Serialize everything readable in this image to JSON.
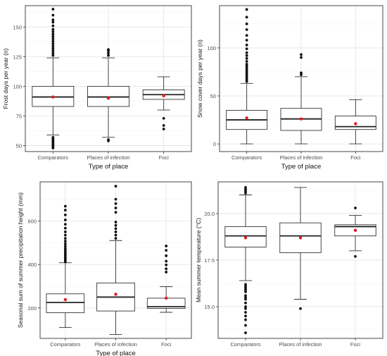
{
  "chart_data": [
    {
      "type": "box",
      "xlabel": "Type of place",
      "ylabel": "Frost days per year (n)",
      "categories": [
        "Comparators",
        "Places of infection",
        "Foci"
      ],
      "yticks": [
        50,
        75,
        100,
        125,
        150
      ],
      "ylim": [
        45,
        168
      ],
      "grid": true,
      "boxes": [
        {
          "whisker_low": 59,
          "q1": 83,
          "median": 91,
          "q3": 100,
          "whisker_high": 124,
          "mean": 91,
          "outliers_low": [
            48,
            49,
            50,
            51,
            52,
            53,
            54,
            55,
            56,
            57
          ],
          "outliers_high": [
            126,
            128,
            130,
            132,
            134,
            136,
            138,
            140,
            142,
            144,
            146,
            148,
            151,
            154,
            156,
            160,
            165
          ]
        },
        {
          "whisker_low": 57,
          "q1": 83,
          "median": 91,
          "q3": 100,
          "whisker_high": 124,
          "mean": 90,
          "outliers_low": [
            54,
            55
          ],
          "outliers_high": [
            126,
            128,
            130,
            131
          ]
        },
        {
          "whisker_low": 80,
          "q1": 89,
          "median": 93,
          "q3": 97,
          "whisker_high": 108,
          "mean": 92,
          "outliers_low": [
            73,
            67,
            64
          ],
          "outliers_high": []
        }
      ]
    },
    {
      "type": "box",
      "xlabel": "Type of place",
      "ylabel": "Snow cover days per year (n)",
      "categories": [
        "Comparators",
        "Places of infection",
        "Foci"
      ],
      "yticks": [
        0,
        50,
        100
      ],
      "ylim": [
        -8,
        144
      ],
      "grid": true,
      "boxes": [
        {
          "whisker_low": 0,
          "q1": 15,
          "median": 25,
          "q3": 35,
          "whisker_high": 63,
          "mean": 27,
          "outliers_low": [],
          "outliers_high": [
            65,
            67,
            69,
            71,
            73,
            75,
            77,
            79,
            81,
            83,
            86,
            89,
            92,
            95,
            99,
            103,
            108,
            113,
            119,
            125,
            132,
            140
          ]
        },
        {
          "whisker_low": 0,
          "q1": 14,
          "median": 26,
          "q3": 37,
          "whisker_high": 70,
          "mean": 26,
          "outliers_low": [],
          "outliers_high": [
            72,
            74,
            90,
            93
          ]
        },
        {
          "whisker_low": 0,
          "q1": 15,
          "median": 18,
          "q3": 29,
          "whisker_high": 46,
          "mean": 21,
          "outliers_low": [],
          "outliers_high": []
        }
      ]
    },
    {
      "type": "box",
      "xlabel": "Type of place",
      "ylabel": "Seasonal sum of summer precipitation height (mm)",
      "categories": [
        "Comparators",
        "Places of infection",
        "Foci"
      ],
      "yticks": [
        200,
        400,
        600
      ],
      "ylim": [
        60,
        780
      ],
      "grid": true,
      "boxes": [
        {
          "whisker_low": 110,
          "q1": 178,
          "median": 225,
          "q3": 265,
          "whisker_high": 408,
          "mean": 238,
          "outliers_low": [],
          "outliers_high": [
            412,
            418,
            425,
            432,
            440,
            448,
            456,
            465,
            474,
            484,
            495,
            507,
            520,
            535,
            550,
            567,
            585,
            605,
            628,
            650,
            668
          ]
        },
        {
          "whisker_low": 78,
          "q1": 186,
          "median": 250,
          "q3": 315,
          "whisker_high": 510,
          "mean": 263,
          "outliers_low": [],
          "outliers_high": [
            520,
            535,
            550,
            565,
            580,
            595,
            640,
            660,
            680,
            700,
            760
          ]
        },
        {
          "whisker_low": 180,
          "q1": 198,
          "median": 206,
          "q3": 245,
          "whisker_high": 298,
          "mean": 245,
          "outliers_low": [],
          "outliers_high": [
            365,
            380,
            398,
            415,
            440,
            465,
            485
          ]
        }
      ]
    },
    {
      "type": "box",
      "xlabel": "",
      "ylabel": "Mean summer temperature (°C)",
      "categories": [
        "Comparators",
        "Places of infection",
        "Foci"
      ],
      "yticks": [
        15.0,
        17.5,
        20.0
      ],
      "ylim": [
        13.3,
        21.7
      ],
      "grid": true,
      "boxes": [
        {
          "whisker_low": 16.4,
          "q1": 18.2,
          "median": 18.8,
          "q3": 19.3,
          "whisker_high": 21.0,
          "mean": 18.7,
          "outliers_low": [
            13.6,
            14.0,
            14.3,
            14.5,
            14.7,
            14.9,
            15.0,
            15.2,
            15.4,
            15.5,
            15.6,
            15.8,
            15.9,
            16.0,
            16.1,
            16.2
          ],
          "outliers_high": [
            21.1,
            21.2,
            21.3,
            21.4
          ]
        },
        {
          "whisker_low": 15.4,
          "q1": 17.9,
          "median": 18.8,
          "q3": 19.5,
          "whisker_high": 21.4,
          "mean": 18.7,
          "outliers_low": [
            14.9
          ],
          "outliers_high": []
        },
        {
          "whisker_low": 18.0,
          "q1": 18.8,
          "median": 19.3,
          "q3": 19.4,
          "whisker_high": 19.9,
          "mean": 19.1,
          "outliers_low": [
            17.7
          ],
          "outliers_high": [
            20.3
          ]
        }
      ]
    }
  ]
}
